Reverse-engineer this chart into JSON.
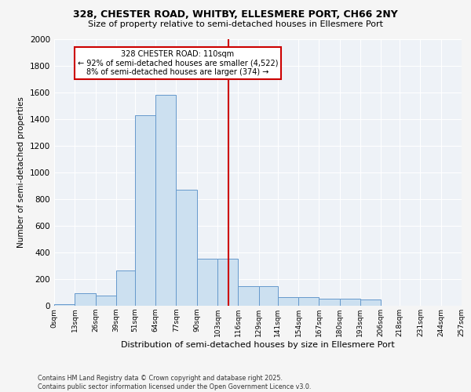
{
  "title_line1": "328, CHESTER ROAD, WHITBY, ELLESMERE PORT, CH66 2NY",
  "title_line2": "Size of property relative to semi-detached houses in Ellesmere Port",
  "xlabel": "Distribution of semi-detached houses by size in Ellesmere Port",
  "ylabel": "Number of semi-detached properties",
  "footer_line1": "Contains HM Land Registry data © Crown copyright and database right 2025.",
  "footer_line2": "Contains public sector information licensed under the Open Government Licence v3.0.",
  "bin_labels": [
    "0sqm",
    "13sqm",
    "26sqm",
    "39sqm",
    "51sqm",
    "64sqm",
    "77sqm",
    "90sqm",
    "103sqm",
    "116sqm",
    "129sqm",
    "141sqm",
    "154sqm",
    "167sqm",
    "180sqm",
    "193sqm",
    "206sqm",
    "218sqm",
    "231sqm",
    "244sqm",
    "257sqm"
  ],
  "bar_values": [
    10,
    95,
    75,
    265,
    1430,
    1580,
    870,
    355,
    355,
    150,
    150,
    65,
    65,
    55,
    55,
    50,
    0,
    0,
    0,
    0
  ],
  "bin_edges": [
    0,
    13,
    26,
    39,
    51,
    64,
    77,
    90,
    103,
    116,
    129,
    141,
    154,
    167,
    180,
    193,
    206,
    218,
    231,
    244,
    257
  ],
  "property_size": 110,
  "annotation_title": "328 CHESTER ROAD: 110sqm",
  "annotation_line1": "← 92% of semi-detached houses are smaller (4,522)",
  "annotation_line2": "8% of semi-detached houses are larger (374) →",
  "bar_color": "#cce0f0",
  "bar_edge_color": "#6699cc",
  "red_line_color": "#cc0000",
  "annotation_box_color": "#cc0000",
  "background_color": "#eef2f7",
  "grid_color": "#ffffff",
  "fig_bg_color": "#f5f5f5",
  "ylim": [
    0,
    2000
  ],
  "yticks": [
    0,
    200,
    400,
    600,
    800,
    1000,
    1200,
    1400,
    1600,
    1800,
    2000
  ]
}
